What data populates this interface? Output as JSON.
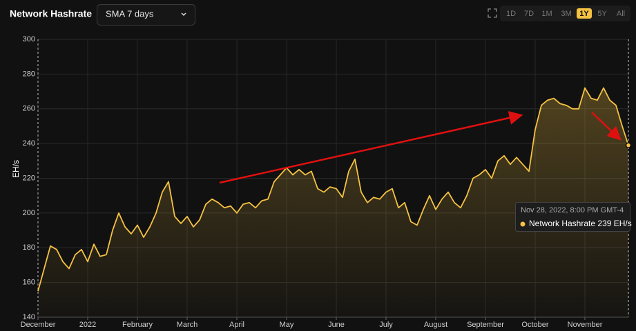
{
  "controls": {
    "smoothing": "SMA 7 days",
    "ranges": [
      "1D",
      "7D",
      "1M",
      "3M",
      "1Y",
      "5Y",
      "All"
    ],
    "active_range": "1Y"
  },
  "chart_data": {
    "type": "line",
    "title": "Network Hashrate",
    "y_label": "EH/s",
    "categories": [
      "December",
      null,
      null,
      null,
      null,
      null,
      null,
      null,
      "2022",
      null,
      null,
      null,
      null,
      null,
      null,
      null,
      "February",
      null,
      null,
      null,
      null,
      null,
      null,
      null,
      "March",
      null,
      null,
      null,
      null,
      null,
      null,
      null,
      "April",
      null,
      null,
      null,
      null,
      null,
      null,
      null,
      "May",
      null,
      null,
      null,
      null,
      null,
      null,
      null,
      "June",
      null,
      null,
      null,
      null,
      null,
      null,
      null,
      "July",
      null,
      null,
      null,
      null,
      null,
      null,
      null,
      "August",
      null,
      null,
      null,
      null,
      null,
      null,
      null,
      "September",
      null,
      null,
      null,
      null,
      null,
      null,
      null,
      "October",
      null,
      null,
      null,
      null,
      null,
      null,
      null,
      "November",
      null,
      null,
      null,
      null,
      null,
      null,
      null
    ],
    "series": [
      {
        "name": "Network Hashrate",
        "color": "#f5c242",
        "values": [
          155,
          168,
          181,
          179,
          172,
          168,
          176,
          179,
          172,
          182,
          175,
          176,
          190,
          200,
          192,
          188,
          193,
          186,
          192,
          200,
          212,
          218,
          198,
          194,
          198,
          192,
          196,
          205,
          208,
          206,
          203,
          204,
          200,
          205,
          206,
          203,
          207,
          208,
          218,
          222,
          226,
          222,
          225,
          222,
          224,
          214,
          212,
          215,
          214,
          209,
          224,
          231,
          212,
          206,
          209,
          208,
          212,
          214,
          203,
          206,
          195,
          193,
          202,
          210,
          202,
          208,
          212,
          206,
          203,
          210,
          220,
          222,
          225,
          220,
          230,
          233,
          228,
          232,
          228,
          224,
          248,
          262,
          265,
          266,
          263,
          262,
          260,
          260,
          272,
          266,
          265,
          272,
          265,
          262,
          250,
          239
        ]
      }
    ],
    "ylim": [
      140,
      300
    ],
    "yticks": [
      140,
      160,
      180,
      200,
      220,
      240,
      260,
      280,
      300
    ],
    "grid": true,
    "tooltip": {
      "date": "Nov 28, 2022, 8:00 PM GMT-4"
    }
  }
}
